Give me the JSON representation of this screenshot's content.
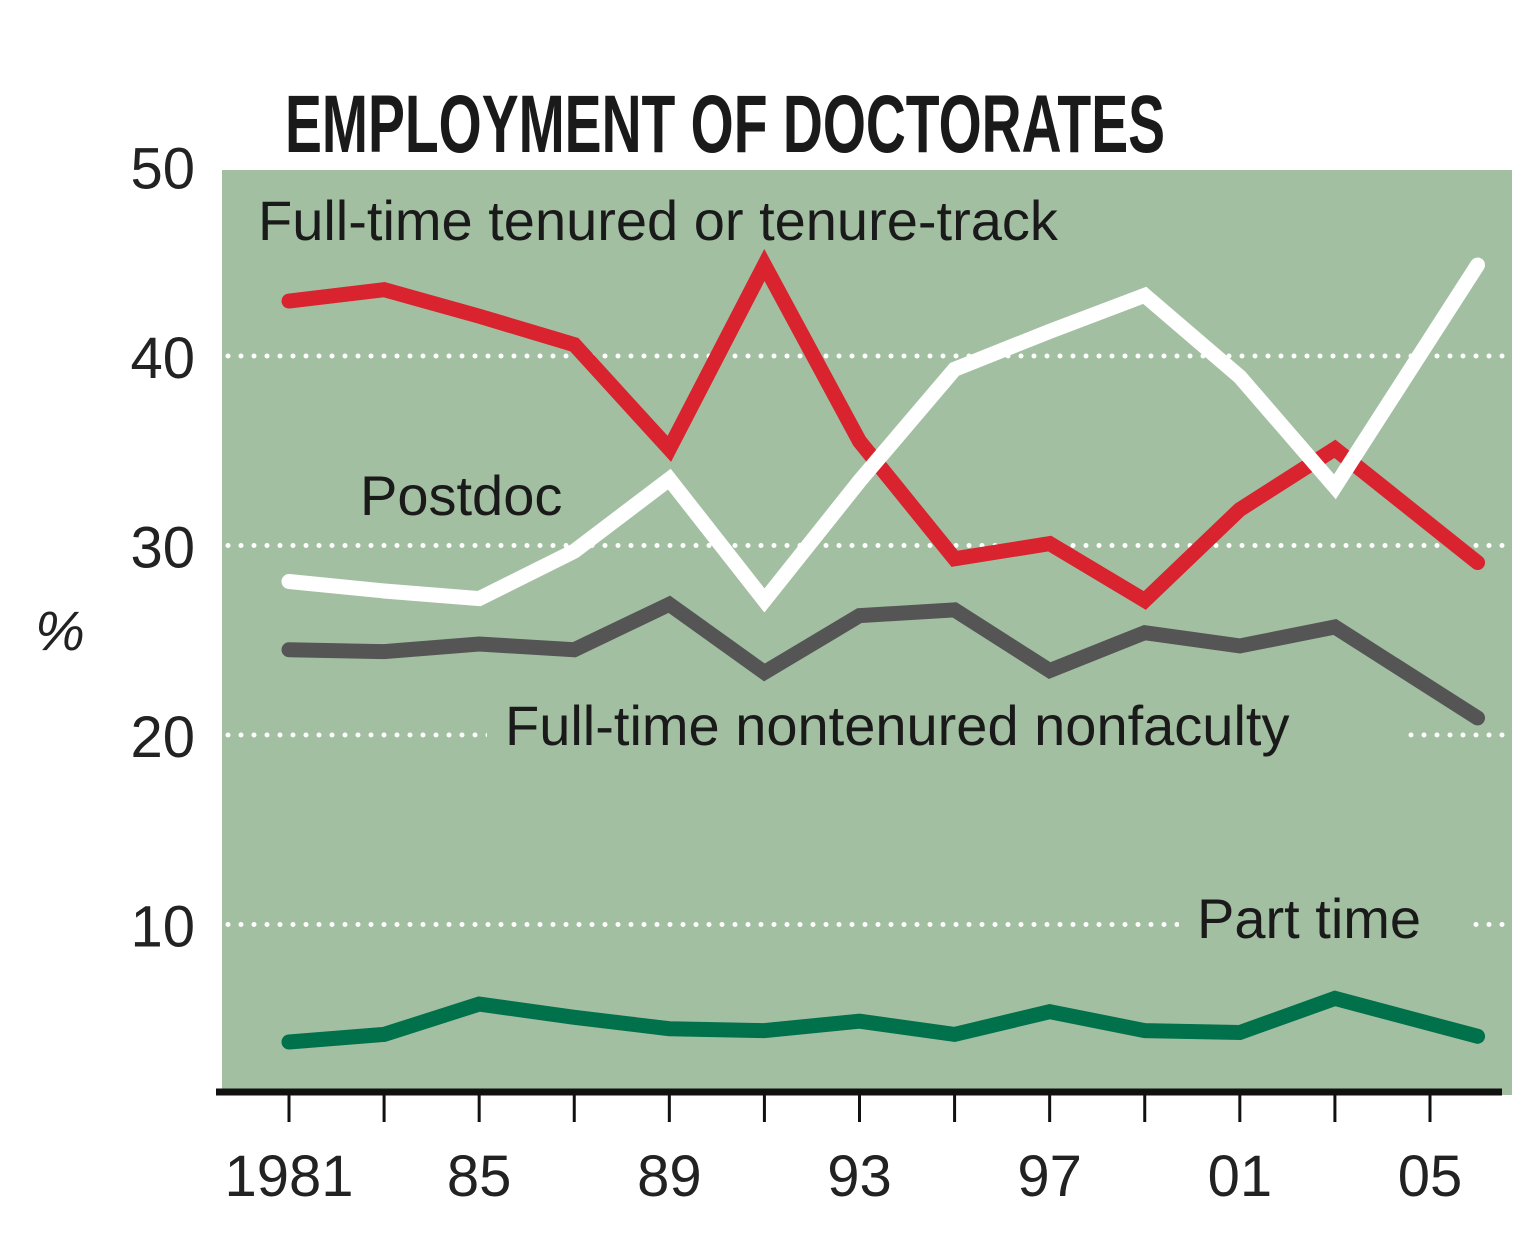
{
  "chart_data": {
    "type": "line",
    "title": "EMPLOYMENT OF DOCTORATES",
    "ylabel": "%",
    "xlabel": "",
    "ylim": [
      0,
      50
    ],
    "yticks": [
      "10",
      "20",
      "30",
      "40",
      "50"
    ],
    "xtick_labels": [
      "1981",
      "85",
      "89",
      "93",
      "97",
      "01",
      "05"
    ],
    "x": [
      1981,
      1983,
      1985,
      1987,
      1989,
      1991,
      1993,
      1995,
      1997,
      1999,
      2001,
      2003,
      2006
    ],
    "grid": true,
    "colors": {
      "background": "#a3bfa2",
      "tenured": "#d9232e",
      "postdoc": "#ffffff",
      "nontenured": "#555555",
      "parttime": "#00714a"
    },
    "series": [
      {
        "key": "tenured",
        "name": "Full-time tenured or tenure-track",
        "values": [
          42.9,
          43.5,
          42.1,
          40.6,
          35.1,
          44.8,
          35.5,
          29.3,
          30.1,
          27.1,
          31.9,
          35.1,
          29.1
        ]
      },
      {
        "key": "postdoc",
        "name": "Postdoc",
        "values": [
          28.1,
          27.6,
          27.2,
          29.7,
          33.5,
          27.1,
          33.4,
          39.3,
          41.3,
          43.2,
          38.9,
          33.1,
          44.8
        ]
      },
      {
        "key": "nontenured",
        "name": "Full-time nontenured nonfaculty",
        "values": [
          24.5,
          24.4,
          24.8,
          24.5,
          26.9,
          23.3,
          26.3,
          26.6,
          23.4,
          25.4,
          24.7,
          25.7,
          20.9
        ]
      },
      {
        "key": "parttime",
        "name": "Part time",
        "values": [
          3.8,
          4.2,
          5.8,
          5.1,
          4.5,
          4.4,
          4.9,
          4.2,
          5.4,
          4.4,
          4.3,
          6.1,
          4.1
        ]
      }
    ]
  }
}
